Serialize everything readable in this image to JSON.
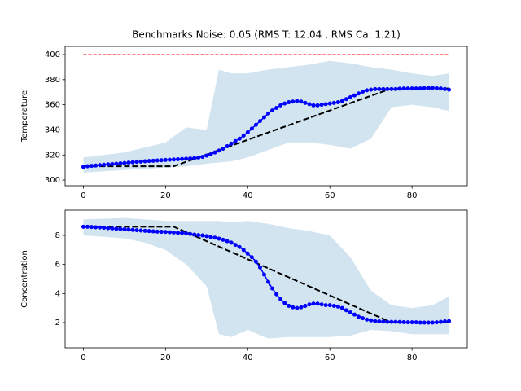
{
  "chart_data": [
    {
      "type": "line",
      "title": "Benchmarks Noise: 0.05 (RMS T: 12.04 , RMS Ca: 1.21)",
      "ylabel": "Temperature",
      "x": [
        0,
        1,
        2,
        3,
        4,
        5,
        6,
        7,
        8,
        9,
        10,
        11,
        12,
        13,
        14,
        15,
        16,
        17,
        18,
        19,
        20,
        21,
        22,
        23,
        24,
        25,
        26,
        27,
        28,
        29,
        30,
        31,
        32,
        33,
        34,
        35,
        36,
        37,
        38,
        39,
        40,
        41,
        42,
        43,
        44,
        45,
        46,
        47,
        48,
        49,
        50,
        51,
        52,
        53,
        54,
        55,
        56,
        57,
        58,
        59,
        60,
        61,
        62,
        63,
        64,
        65,
        66,
        67,
        68,
        69,
        70,
        71,
        72,
        73,
        74,
        75,
        76,
        77,
        78,
        79,
        80,
        81,
        82,
        83,
        84,
        85,
        86,
        87,
        88,
        89
      ],
      "xlim": [
        -4.45,
        93.45
      ],
      "xticks": [
        0,
        20,
        40,
        60,
        80
      ],
      "ylim": [
        295.5,
        406.5
      ],
      "yticks": [
        300,
        320,
        340,
        360,
        380,
        400
      ],
      "band": {
        "color": "#1f77b4",
        "opacity": 0.2,
        "x": [
          0,
          5,
          10,
          15,
          20,
          25,
          30,
          33,
          36,
          40,
          45,
          50,
          55,
          60,
          65,
          70,
          75,
          80,
          85,
          89
        ],
        "upper": [
          318,
          320,
          322,
          326,
          330,
          342,
          340,
          388,
          385,
          385,
          388,
          390,
          392,
          395,
          393,
          390,
          388,
          385,
          383,
          385
        ],
        "lower": [
          306,
          307,
          308,
          309,
          310,
          311,
          313,
          314,
          315,
          318,
          324,
          330,
          330,
          328,
          325,
          333,
          358,
          360,
          358,
          355
        ]
      },
      "series": [
        {
          "color": "#ff0000",
          "style": "dashed",
          "width": 1,
          "x": [
            0,
            89
          ],
          "values": [
            400,
            400
          ]
        },
        {
          "color": "#000000",
          "style": "dashed",
          "width": 2,
          "x": [
            0,
            22,
            75,
            89
          ],
          "values": [
            311,
            311,
            373,
            373
          ]
        },
        {
          "color": "#0000ff",
          "style": "solid",
          "width": 1.5,
          "marker": true,
          "values": [
            310.5,
            311,
            311.3,
            311.6,
            312,
            312.2,
            312.5,
            312.8,
            313,
            313.3,
            313.6,
            313.9,
            314.2,
            314.5,
            314.7,
            315,
            315.2,
            315.4,
            315.6,
            315.8,
            316,
            316.2,
            316.4,
            316.6,
            316.8,
            317,
            317.2,
            317.5,
            318,
            318.5,
            319.5,
            320.5,
            322,
            323.5,
            325,
            327,
            329,
            331,
            333,
            335.5,
            338,
            341,
            344,
            347,
            350,
            353,
            355.5,
            357.5,
            359.5,
            361,
            362,
            362.5,
            363,
            362.5,
            361.5,
            360.5,
            359.5,
            359.5,
            360,
            360.5,
            361,
            361.5,
            362,
            363,
            364.5,
            366,
            367.5,
            369,
            370.5,
            371.5,
            372,
            372.5,
            372.5,
            372.5,
            372.5,
            372.5,
            372.5,
            372.8,
            373,
            373,
            373,
            373,
            373,
            373.2,
            373.5,
            373.5,
            373.2,
            373,
            372.5,
            372
          ]
        }
      ]
    },
    {
      "type": "line",
      "ylabel": "Concentration",
      "x": [
        0,
        1,
        2,
        3,
        4,
        5,
        6,
        7,
        8,
        9,
        10,
        11,
        12,
        13,
        14,
        15,
        16,
        17,
        18,
        19,
        20,
        21,
        22,
        23,
        24,
        25,
        26,
        27,
        28,
        29,
        30,
        31,
        32,
        33,
        34,
        35,
        36,
        37,
        38,
        39,
        40,
        41,
        42,
        43,
        44,
        45,
        46,
        47,
        48,
        49,
        50,
        51,
        52,
        53,
        54,
        55,
        56,
        57,
        58,
        59,
        60,
        61,
        62,
        63,
        64,
        65,
        66,
        67,
        68,
        69,
        70,
        71,
        72,
        73,
        74,
        75,
        76,
        77,
        78,
        79,
        80,
        81,
        82,
        83,
        84,
        85,
        86,
        87,
        88,
        89
      ],
      "xlim": [
        -4.45,
        93.45
      ],
      "xticks": [
        0,
        20,
        40,
        60,
        80
      ],
      "ylim": [
        0.26,
        9.74
      ],
      "yticks": [
        2,
        4,
        6,
        8
      ],
      "band": {
        "color": "#1f77b4",
        "opacity": 0.2,
        "x": [
          0,
          5,
          10,
          15,
          20,
          25,
          30,
          33,
          36,
          40,
          45,
          50,
          55,
          60,
          65,
          70,
          75,
          80,
          85,
          89
        ],
        "upper": [
          9.1,
          9.15,
          9.2,
          9.1,
          9.0,
          9.0,
          9.0,
          9.0,
          8.9,
          9.0,
          8.8,
          8.5,
          8.3,
          8.0,
          6.5,
          4.2,
          3.2,
          3.0,
          3.2,
          3.8
        ],
        "lower": [
          8.0,
          7.9,
          7.8,
          7.5,
          7.0,
          6.0,
          4.5,
          1.2,
          1.0,
          1.5,
          0.9,
          1.0,
          1.0,
          1.0,
          1.1,
          1.5,
          1.4,
          1.2,
          1.2,
          1.2
        ]
      },
      "series": [
        {
          "color": "#000000",
          "style": "dashed",
          "width": 2,
          "x": [
            0,
            22,
            75,
            89
          ],
          "values": [
            8.6,
            8.6,
            2.0,
            2.0
          ]
        },
        {
          "color": "#0000ff",
          "style": "solid",
          "width": 1.5,
          "marker": true,
          "values": [
            8.6,
            8.6,
            8.58,
            8.56,
            8.55,
            8.53,
            8.5,
            8.48,
            8.46,
            8.44,
            8.42,
            8.4,
            8.38,
            8.36,
            8.34,
            8.32,
            8.3,
            8.28,
            8.26,
            8.25,
            8.24,
            8.22,
            8.2,
            8.18,
            8.16,
            8.14,
            8.1,
            8.06,
            8.02,
            8.0,
            7.95,
            7.9,
            7.85,
            7.78,
            7.7,
            7.6,
            7.5,
            7.35,
            7.2,
            7.0,
            6.75,
            6.5,
            6.2,
            5.8,
            5.3,
            4.8,
            4.35,
            3.95,
            3.6,
            3.35,
            3.15,
            3.05,
            3.0,
            3.05,
            3.15,
            3.25,
            3.3,
            3.3,
            3.25,
            3.2,
            3.2,
            3.15,
            3.1,
            3.0,
            2.85,
            2.7,
            2.55,
            2.4,
            2.3,
            2.2,
            2.15,
            2.1,
            2.08,
            2.06,
            2.05,
            2.05,
            2.05,
            2.04,
            2.03,
            2.02,
            2.02,
            2.02,
            2.0,
            2.0,
            2.0,
            2.0,
            2.02,
            2.05,
            2.08,
            2.1
          ]
        }
      ]
    }
  ]
}
